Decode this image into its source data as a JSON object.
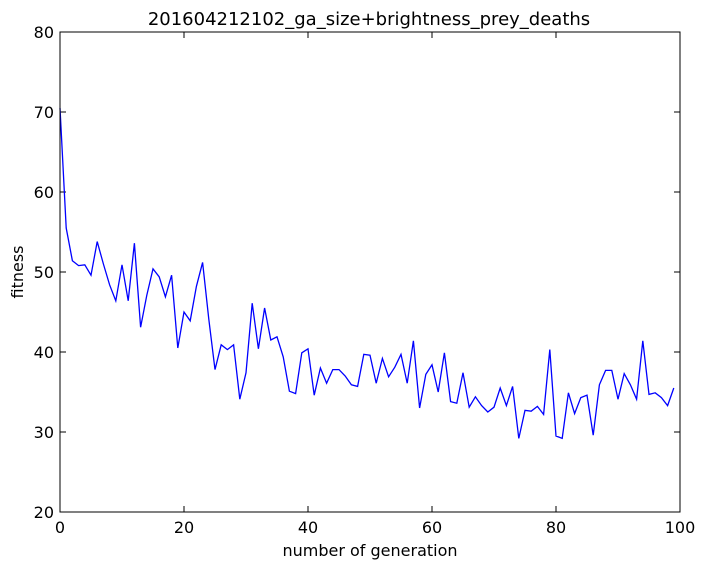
{
  "chart_data": {
    "type": "line",
    "title": "201604212102_ga_size+brightness_prey_deaths",
    "xlabel": "number of generation",
    "ylabel": "fitness",
    "xlim": [
      0,
      100
    ],
    "ylim": [
      20,
      80
    ],
    "xticks": [
      0,
      20,
      40,
      60,
      80,
      100
    ],
    "yticks": [
      20,
      30,
      40,
      50,
      60,
      70,
      80
    ],
    "grid": false,
    "legend": "none",
    "series": [
      {
        "color": "#0000ff",
        "x": [
          0,
          1,
          2,
          3,
          4,
          5,
          6,
          7,
          8,
          9,
          10,
          11,
          12,
          13,
          14,
          15,
          16,
          17,
          18,
          19,
          20,
          21,
          22,
          23,
          24,
          25,
          26,
          27,
          28,
          29,
          30,
          31,
          32,
          33,
          34,
          35,
          36,
          37,
          38,
          39,
          40,
          41,
          42,
          43,
          44,
          45,
          46,
          47,
          48,
          49,
          50,
          51,
          52,
          53,
          54,
          55,
          56,
          57,
          58,
          59,
          60,
          61,
          62,
          63,
          64,
          65,
          66,
          67,
          68,
          69,
          70,
          71,
          72,
          73,
          74,
          75,
          76,
          77,
          78,
          79,
          80,
          81,
          82,
          83,
          84,
          85,
          86,
          87,
          88,
          89,
          90,
          91,
          92,
          93,
          94,
          95,
          96,
          97,
          98,
          99
        ],
        "values": [
          70.5,
          55.5,
          51.4,
          50.8,
          50.9,
          49.6,
          53.8,
          51.0,
          48.4,
          46.4,
          50.9,
          46.4,
          53.6,
          43.1,
          47.1,
          50.4,
          49.4,
          46.9,
          49.6,
          40.5,
          45.0,
          43.9,
          48.2,
          51.2,
          44.1,
          37.8,
          40.9,
          40.3,
          40.9,
          34.1,
          37.4,
          46.1,
          40.4,
          45.5,
          41.5,
          41.9,
          39.4,
          35.1,
          34.8,
          39.9,
          40.4,
          34.6,
          38.0,
          36.1,
          37.8,
          37.8,
          37.0,
          35.9,
          35.7,
          39.7,
          39.6,
          36.1,
          39.2,
          36.9,
          38.1,
          39.7,
          36.1,
          41.4,
          33.0,
          37.2,
          38.4,
          35.0,
          39.9,
          33.8,
          33.6,
          37.4,
          33.1,
          34.4,
          33.3,
          32.5,
          33.1,
          35.5,
          33.3,
          35.7,
          29.2,
          32.7,
          32.6,
          33.2,
          32.2,
          40.3,
          29.5,
          29.2,
          34.9,
          32.3,
          34.3,
          34.6,
          29.6,
          35.9,
          37.7,
          37.7,
          34.1,
          37.3,
          35.9,
          34.1,
          41.4,
          34.7,
          34.9,
          34.3,
          33.3,
          35.5
        ]
      }
    ]
  }
}
